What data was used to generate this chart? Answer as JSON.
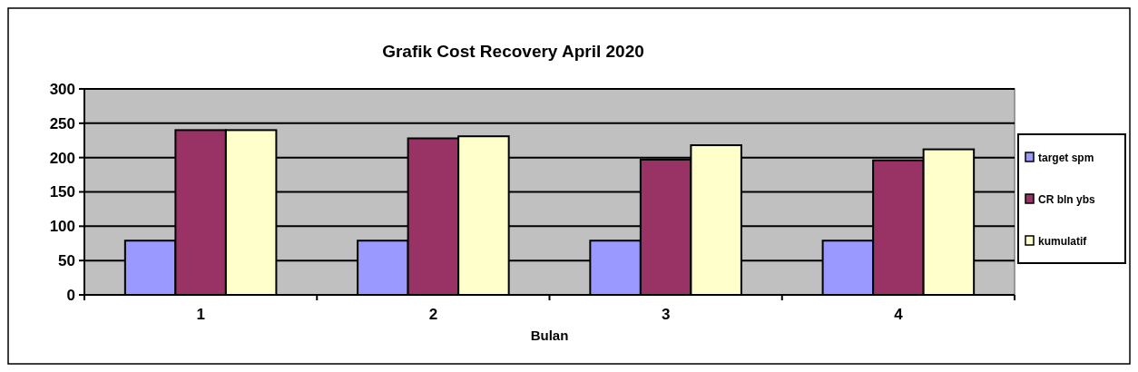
{
  "chart_data": {
    "type": "bar",
    "title": "Grafik Cost Recovery April 2020",
    "xlabel": "Bulan",
    "categories": [
      "1",
      "2",
      "3",
      "4"
    ],
    "series": [
      {
        "name": "target spm",
        "color": "#9999ff",
        "values": [
          79,
          79,
          79,
          79
        ]
      },
      {
        "name": "CR bln ybs",
        "color": "#993366",
        "values": [
          240,
          228,
          197,
          196
        ]
      },
      {
        "name": "kumulatif",
        "color": "#ffffcc",
        "values": [
          240,
          231,
          218,
          212
        ]
      }
    ],
    "ylim": [
      0,
      300
    ],
    "yticks": [
      0,
      50,
      100,
      150,
      200,
      250,
      300
    ],
    "grid": "y",
    "legend": "right"
  }
}
